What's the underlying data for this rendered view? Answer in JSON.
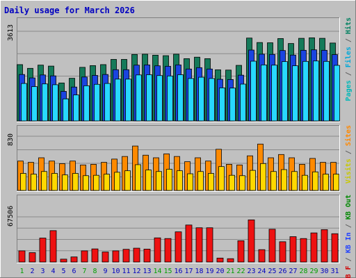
{
  "chart_data": {
    "type": "bar",
    "title": "Daily usage for March 2026",
    "categories": [
      "1",
      "2",
      "3",
      "4",
      "5",
      "6",
      "7",
      "8",
      "9",
      "10",
      "11",
      "12",
      "13",
      "14",
      "15",
      "16",
      "17",
      "18",
      "19",
      "20",
      "21",
      "22",
      "23",
      "24",
      "25",
      "26",
      "27",
      "28",
      "29",
      "30",
      "31"
    ],
    "weekend_days": [
      "1",
      "7",
      "8",
      "14",
      "15",
      "21",
      "22",
      "28",
      "29"
    ],
    "panels": [
      {
        "id": "requests",
        "ylim": [
          0,
          3613
        ],
        "tick_label": "3613",
        "right_label_parts": [
          {
            "text": "Pages",
            "color": "#00b8b8"
          },
          {
            "text": " / ",
            "color": "#606060"
          },
          {
            "text": "Files",
            "color": "#00a8d8"
          },
          {
            "text": " / ",
            "color": "#606060"
          },
          {
            "text": "Hits",
            "color": "#008060"
          }
        ],
        "series": [
          {
            "name": "Hits",
            "color": "#157a5a",
            "values": [
              2270,
              2120,
              2250,
              2210,
              1530,
              1720,
              2160,
              2230,
              2270,
              2480,
              2480,
              2680,
              2690,
              2650,
              2630,
              2690,
              2510,
              2570,
              2510,
              2060,
              2050,
              2240,
              3340,
              3160,
              3150,
              3320,
              3120,
              3330,
              3350,
              3330,
              3140
            ]
          },
          {
            "name": "Files",
            "color": "#1a44e0",
            "values": [
              2270,
              2120,
              2250,
              2210,
              1530,
              1720,
              2160,
              2230,
              2270,
              2480,
              2480,
              2680,
              2690,
              2650,
              2630,
              2690,
              2510,
              2570,
              2510,
              2060,
              2050,
              2240,
              3340,
              3160,
              3150,
              3320,
              3120,
              3330,
              3350,
              3330,
              3140
            ]
          },
          {
            "name": "Pages",
            "color": "#28d8ff",
            "values": [
              2270,
              2120,
              2250,
              2210,
              1530,
              1720,
              2160,
              2230,
              2270,
              2480,
              2480,
              2680,
              2690,
              2650,
              2630,
              2690,
              2510,
              2570,
              2510,
              2060,
              2050,
              2240,
              3340,
              3160,
              3150,
              3320,
              3120,
              3330,
              3350,
              3330,
              3140
            ]
          }
        ]
      },
      {
        "id": "visits",
        "ylim": [
          0,
          830
        ],
        "tick_label": "830",
        "right_label_parts": [
          {
            "text": "Visits",
            "color": "#c8c800"
          },
          {
            "text": " / ",
            "color": "#606060"
          },
          {
            "text": "Sites",
            "color": "#ff8800"
          }
        ],
        "series": [
          {
            "name": "Sites",
            "color": "#ff8a00",
            "values": [
              450,
              430,
              500,
              450,
              410,
              450,
              390,
              400,
              430,
              480,
              520,
              680,
              540,
              500,
              560,
              520,
              440,
              500,
              450,
              630,
              400,
              390,
              530,
              710,
              500,
              550,
              500,
              400,
              490,
              430,
              430
            ]
          },
          {
            "name": "Visits",
            "color": "#ffd800",
            "values": [
              450,
              430,
              500,
              450,
              410,
              450,
              390,
              400,
              430,
              480,
              520,
              680,
              540,
              500,
              560,
              520,
              440,
              500,
              450,
              630,
              400,
              390,
              530,
              710,
              500,
              550,
              500,
              400,
              490,
              430,
              430
            ]
          }
        ]
      },
      {
        "id": "kbytes",
        "ylim": [
          0,
          67506
        ],
        "tick_label": "67506",
        "right_label_parts": [
          {
            "text": "KB F",
            "color": "#d00000"
          },
          {
            "text": " / ",
            "color": "#606060"
          },
          {
            "text": "KB In",
            "color": "#2040ff"
          },
          {
            "text": " / ",
            "color": "#606060"
          },
          {
            "text": "KB Out",
            "color": "#008800"
          }
        ],
        "series": [
          {
            "name": "KB F",
            "color": "#ee1111",
            "values": [
              16700,
              14000,
              35800,
              46900,
              4300,
              7600,
              16700,
              19600,
              15000,
              16700,
              19000,
              20700,
              19300,
              36100,
              35100,
              45100,
              55300,
              51200,
              51200,
              5900,
              5000,
              31800,
              63000,
              18500,
              49000,
              30300,
              37900,
              35100,
              43500,
              48400,
              42300
            ]
          }
        ]
      }
    ],
    "colors": {
      "background": "#c0c0c0",
      "border_dark": "#808080",
      "border_light": "#ffffff",
      "title": "#0000c0",
      "gridline": "#8a8a8a",
      "weekday_label": "#0000c0",
      "weekend_label": "#00a000"
    }
  }
}
